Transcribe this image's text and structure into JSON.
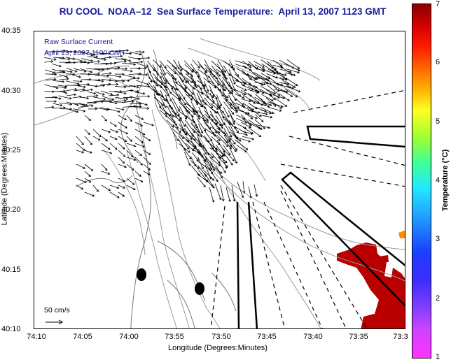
{
  "title": "RU COOL  NOAA–12  Sea Surface Temperature:  April 13, 2007 1123 GMT",
  "legend": {
    "line1": "Raw Surface Current",
    "line2": "April 13, 2007 1100 GMT",
    "scale_label": "50 cm/s"
  },
  "axes": {
    "ylabel": "Latitude (Degrees:Minutes)",
    "xlabel": "Longitude (Degrees:Minutes)",
    "y_ticks": [
      "40:35",
      "40:30",
      "40:25",
      "40:20",
      "40:15",
      "40:10"
    ],
    "x_ticks": [
      "74:10",
      "74:05",
      "74:00",
      "73:55",
      "73:50",
      "73:45",
      "73:40",
      "73:35",
      "73:3"
    ]
  },
  "colorbar": {
    "label": "Temperature (°C)",
    "ticks": [
      "7",
      "6",
      "5",
      "4",
      "3",
      "2",
      "1"
    ],
    "min": 1,
    "max": 7
  },
  "colors": {
    "title": "#1a1a9a",
    "sst_warm": "#b80000",
    "sst_accent": "#ff8c00"
  }
}
